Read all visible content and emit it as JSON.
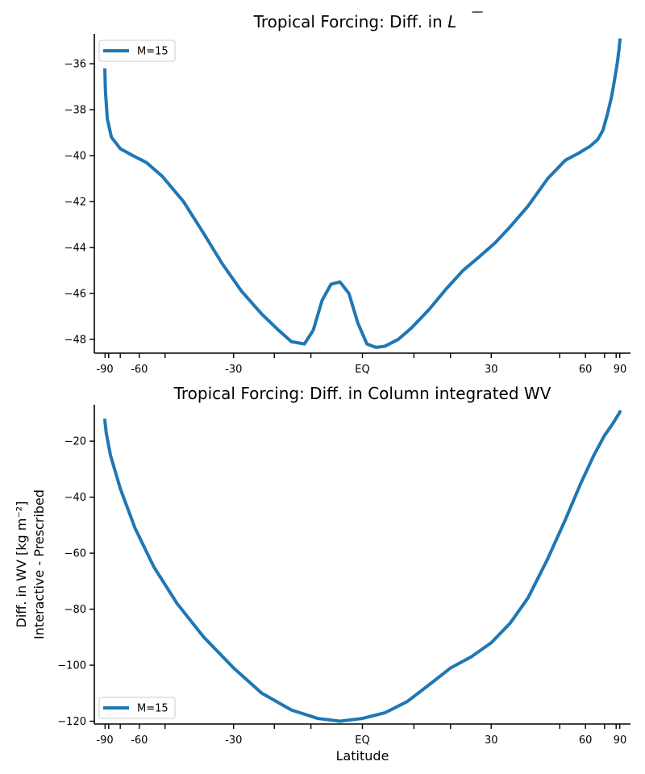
{
  "chart_data": [
    {
      "type": "line",
      "title": "Tropical Forcing: Diff. in ",
      "title_symbol": "L",
      "xlabel": "",
      "ylabel_lines": [],
      "xlim": [
        -92,
        92
      ],
      "ylim": [
        -48.6,
        -34.7
      ],
      "y_ticks": [
        -48,
        -46,
        -44,
        -42,
        -40,
        -38,
        -36
      ],
      "y_tick_labels": [
        "−48",
        "−46",
        "−44",
        "−42",
        "−40",
        "−38",
        "−36"
      ],
      "x_labeled_ticks": [
        -90,
        -60,
        -30,
        0,
        30,
        60,
        90
      ],
      "x_tick_labels": [
        "-90",
        "-60",
        "-30",
        "EQ",
        "30",
        "60",
        "90"
      ],
      "x_minor_ticks_sine": [
        -0.999,
        -0.985,
        -0.94,
        -0.866,
        -0.766,
        -0.5,
        -0.342,
        -0.2,
        0,
        0.2,
        0.342,
        0.5,
        0.766,
        0.866,
        0.94,
        0.985,
        0.999
      ],
      "x_axis_scale": "sine of latitude",
      "legend": {
        "placement": "top-left",
        "entries": [
          "M=15"
        ]
      },
      "grid": false,
      "series": [
        {
          "name": "M=15",
          "color": "#1f77b4",
          "x": [
            -89.5,
            -89,
            -86,
            -82,
            -77,
            -70,
            -63,
            -57,
            -51,
            -44,
            -38,
            -33,
            -28,
            -23,
            -19,
            -16,
            -13,
            -11,
            -9,
            -7,
            -5,
            -3,
            -1,
            1,
            3,
            5,
            8,
            11,
            15,
            19,
            23,
            27,
            31,
            35,
            40,
            46,
            52,
            57,
            62,
            66,
            69,
            72,
            75,
            77,
            79,
            81,
            82,
            83,
            84,
            85,
            86,
            87,
            88,
            89,
            89.5
          ],
          "y": [
            -36.2,
            -36.3,
            -37.2,
            -38.4,
            -39.2,
            -39.7,
            -40.0,
            -40.3,
            -40.9,
            -42.0,
            -43.4,
            -44.7,
            -45.9,
            -46.9,
            -47.6,
            -48.1,
            -48.2,
            -47.6,
            -46.3,
            -45.6,
            -45.5,
            -46.0,
            -47.3,
            -48.2,
            -48.35,
            -48.3,
            -48.0,
            -47.5,
            -46.7,
            -45.8,
            -45.0,
            -44.4,
            -43.8,
            -43.1,
            -42.2,
            -41.0,
            -40.2,
            -39.9,
            -39.6,
            -39.3,
            -38.9,
            -38.2,
            -37.5,
            -37.0,
            -36.5,
            -36.1,
            -35.9,
            -35.7,
            -35.5,
            -35.4,
            -35.2,
            -35.1,
            -35.0,
            -34.95,
            -34.9
          ]
        }
      ]
    },
    {
      "type": "line",
      "title": "Tropical Forcing: Diff. in Column integrated WV",
      "title_symbol": "",
      "xlabel": "Latitude",
      "ylabel_lines": [
        "Diff. in WV [kg m⁻²]",
        "Interactive - Prescribed"
      ],
      "xlim": [
        -92,
        92
      ],
      "ylim": [
        -121,
        -7
      ],
      "y_ticks": [
        -120,
        -100,
        -80,
        -60,
        -40,
        -20
      ],
      "y_tick_labels": [
        "−120",
        "−100",
        "−80",
        "−60",
        "−40",
        "−20"
      ],
      "x_labeled_ticks": [
        -90,
        -60,
        -30,
        0,
        30,
        60,
        90
      ],
      "x_tick_labels": [
        "-90",
        "-60",
        "-30",
        "EQ",
        "30",
        "60",
        "90"
      ],
      "x_minor_ticks_sine": [
        -0.999,
        -0.985,
        -0.94,
        -0.866,
        -0.766,
        -0.5,
        -0.342,
        -0.2,
        0,
        0.2,
        0.342,
        0.5,
        0.766,
        0.866,
        0.94,
        0.985,
        0.999
      ],
      "x_axis_scale": "sine of latitude",
      "legend": {
        "placement": "bottom-left",
        "entries": [
          "M=15"
        ]
      },
      "grid": false,
      "series": [
        {
          "name": "M=15",
          "color": "#1f77b4",
          "x": [
            -89.5,
            -88,
            -84,
            -78,
            -70,
            -62,
            -54,
            -46,
            -38,
            -30,
            -23,
            -16,
            -10,
            -5,
            0,
            5,
            10,
            15,
            20,
            25,
            30,
            35,
            40,
            46,
            52,
            58,
            64,
            70,
            76,
            82,
            86,
            88,
            89.5
          ],
          "y": [
            -12,
            -13,
            -17,
            -25,
            -37,
            -51,
            -65,
            -78,
            -90,
            -101,
            -110,
            -116,
            -119,
            -120,
            -119,
            -117,
            -113,
            -107,
            -101,
            -97,
            -92,
            -85,
            -76,
            -62,
            -48,
            -35,
            -25,
            -18,
            -14,
            -11,
            -10,
            -9.5,
            -9
          ]
        }
      ]
    }
  ]
}
